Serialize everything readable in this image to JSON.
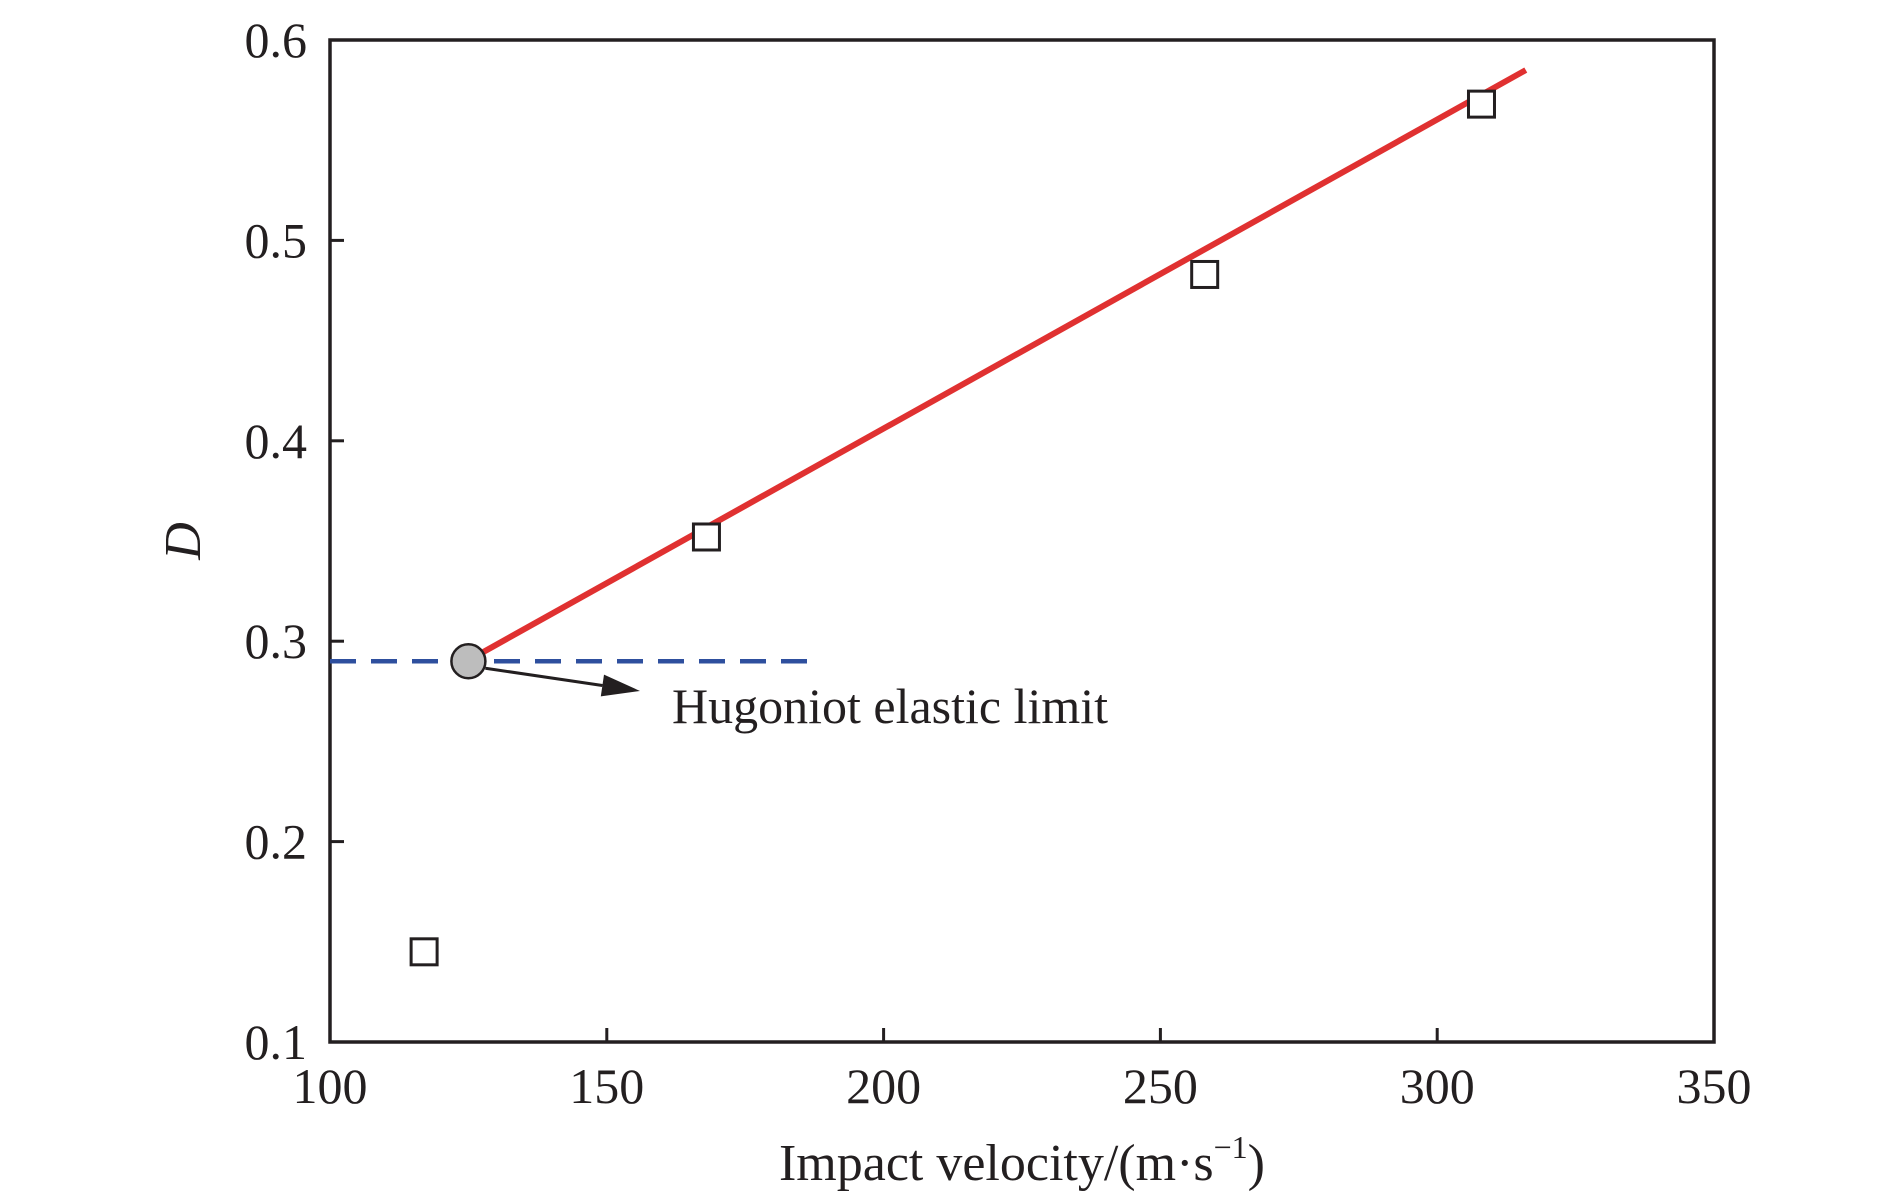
{
  "chart_data": {
    "type": "scatter",
    "title": "",
    "xlabel": "Impact velocity/(m·s",
    "xlabel_sup": "−1",
    "xlabel_close": ")",
    "ylabel": "D",
    "xlim": [
      100,
      350
    ],
    "ylim": [
      0.1,
      0.6
    ],
    "xticks": [
      100,
      150,
      200,
      250,
      300,
      350
    ],
    "yticks": [
      0.1,
      0.2,
      0.3,
      0.4,
      0.5,
      0.6
    ],
    "xtick_labels": [
      "100",
      "150",
      "200",
      "250",
      "300",
      "350"
    ],
    "ytick_labels": [
      "0.1",
      "0.2",
      "0.3",
      "0.4",
      "0.5",
      "0.6"
    ],
    "grid": false,
    "series": [
      {
        "marker": "open-square",
        "color": "#231f20",
        "x": [
          117,
          168,
          258,
          308
        ],
        "y": [
          0.145,
          0.352,
          0.483,
          0.568
        ]
      }
    ],
    "fit_line": {
      "color": "#e03131",
      "x": [
        126,
        316
      ],
      "y": [
        0.292,
        0.585
      ]
    },
    "reference_line": {
      "color": "#2e4f9e",
      "style": "dashed",
      "y": 0.29,
      "x": [
        100,
        187
      ]
    },
    "hel_point": {
      "x": 125,
      "y": 0.29,
      "color": "#bdbdbd"
    },
    "annotation": {
      "text": "Hugoniot elastic limit"
    }
  }
}
